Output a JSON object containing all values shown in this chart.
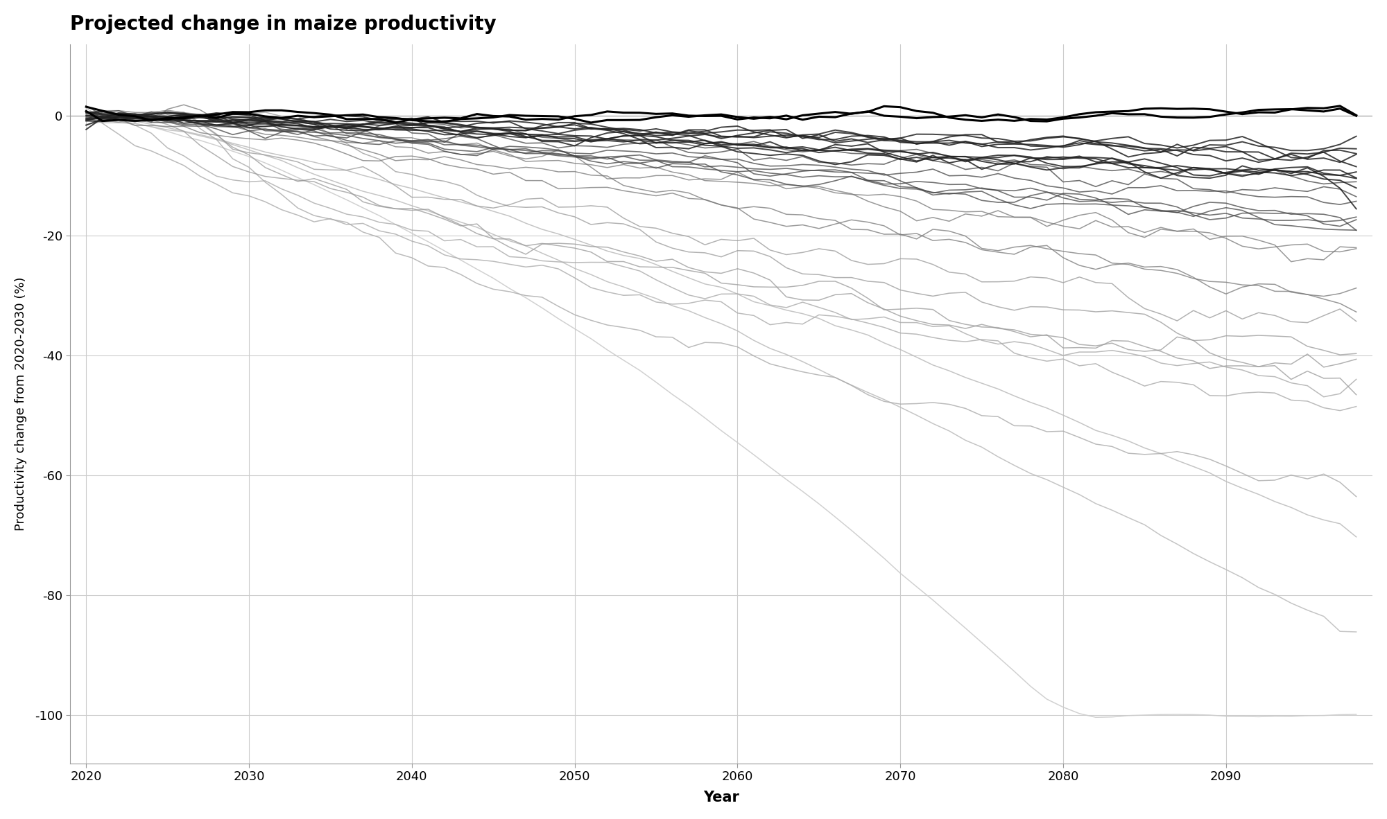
{
  "title": "Projected change in maize productivity",
  "xlabel": "Year",
  "ylabel": "Productivity change from 2020-2030 (%)",
  "xlim": [
    2019,
    2099
  ],
  "ylim": [
    -108,
    12
  ],
  "yticks": [
    0,
    -20,
    -40,
    -60,
    -80,
    -100
  ],
  "xticks": [
    2020,
    2030,
    2040,
    2050,
    2060,
    2070,
    2080,
    2090
  ],
  "bg_color": "#ffffff",
  "grid_color": "#cccccc",
  "seed": 77
}
